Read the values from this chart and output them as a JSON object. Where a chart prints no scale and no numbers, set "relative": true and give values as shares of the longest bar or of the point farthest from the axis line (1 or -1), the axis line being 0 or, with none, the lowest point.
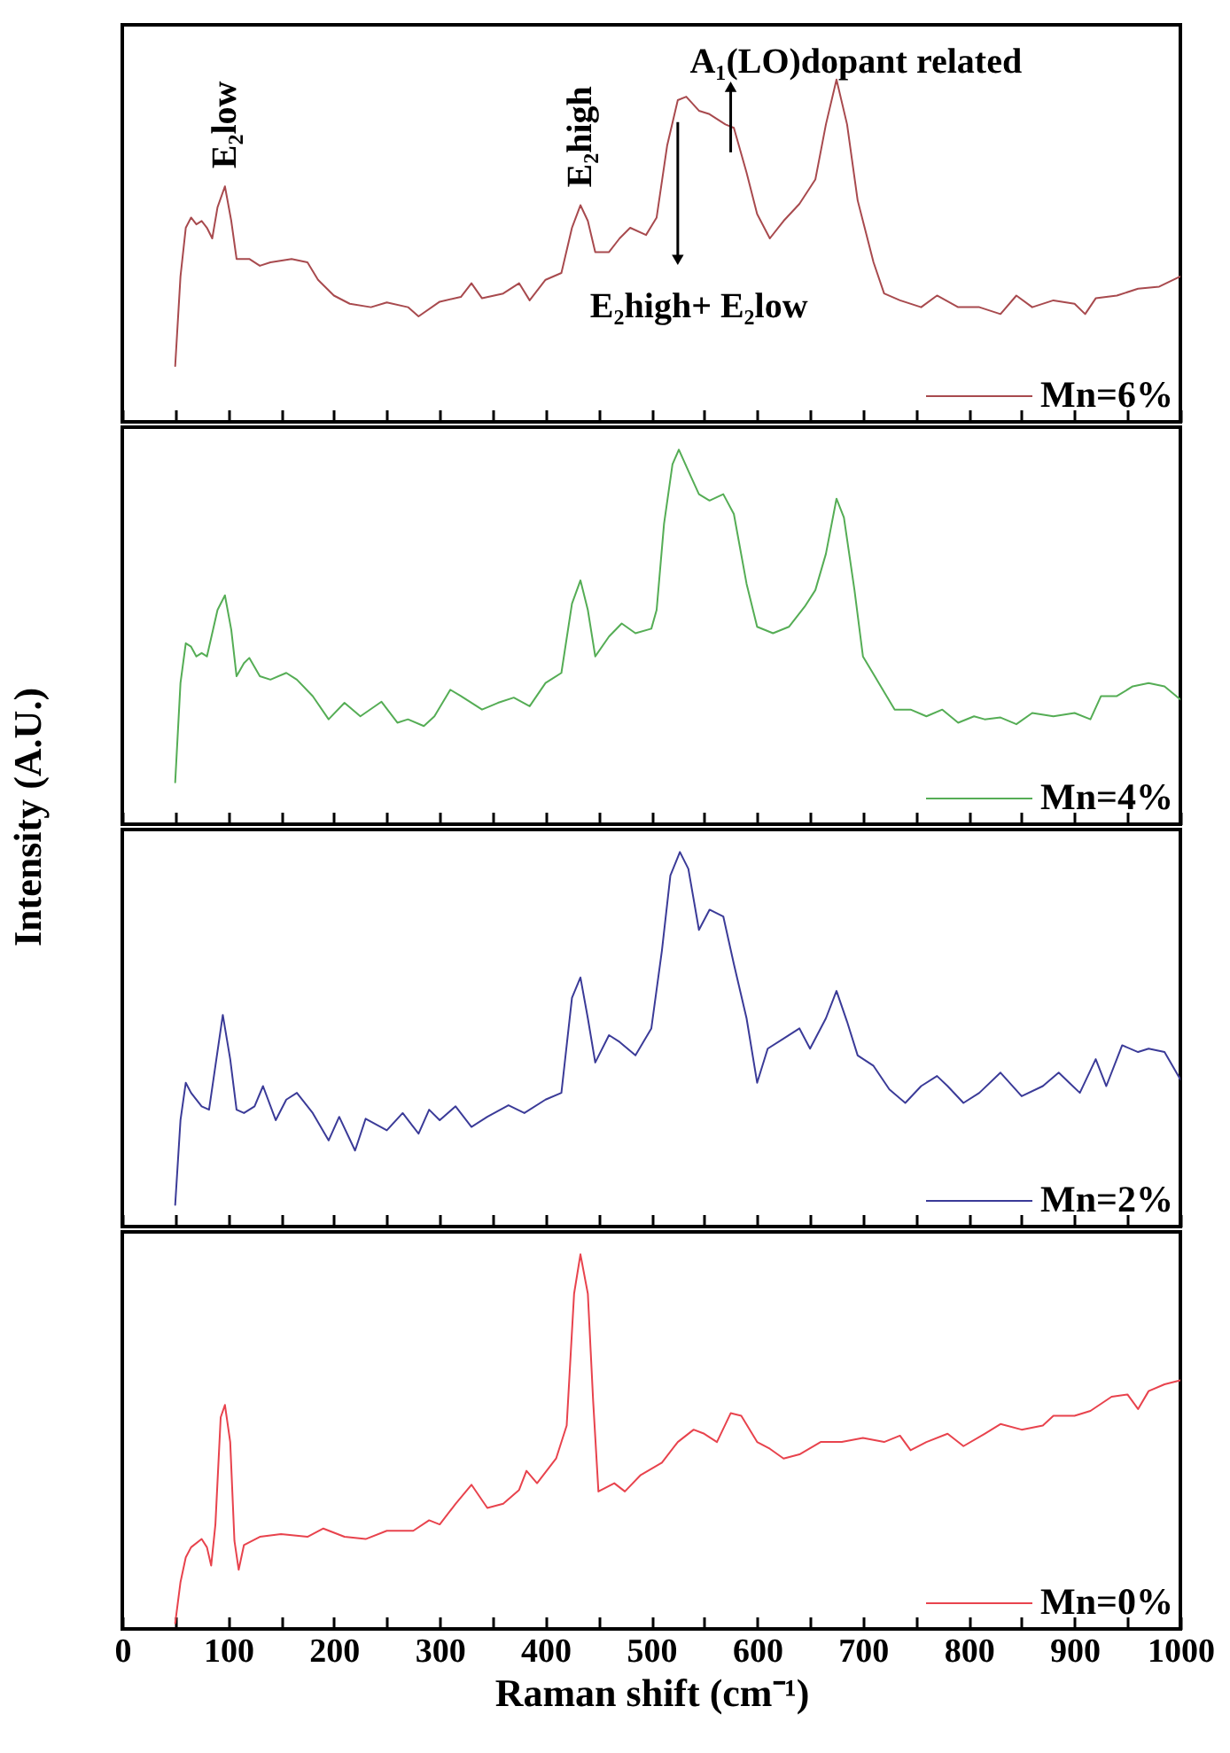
{
  "chart_data": [
    {
      "type": "line",
      "relative": true,
      "legend": "bottom right",
      "tick_labels": false,
      "xlim": [
        0,
        1000
      ],
      "xticks": [
        0,
        {
          "value": 50,
          "label": null
        },
        100,
        {
          "value": 150,
          "label": null
        },
        200,
        {
          "value": 250,
          "label": null
        },
        300,
        {
          "value": 350,
          "label": null
        },
        400,
        {
          "value": 450,
          "label": null
        },
        500,
        {
          "value": 550,
          "label": null
        },
        600,
        {
          "value": 650,
          "label": null
        },
        700,
        {
          "value": 750,
          "label": null
        },
        800,
        {
          "value": 850,
          "label": null
        },
        900,
        {
          "value": 950,
          "label": null
        },
        1000
      ],
      "annotations": [
        {
          "text": "E₂low",
          "x": 97,
          "y": 0.688
        },
        {
          "text": "E₂high",
          "x": 433,
          "y": 0.633
        },
        {
          "text": "A₁(LO)dopant related",
          "x": 575,
          "y": 0.86
        },
        "E₂high+ E₂low"
      ],
      "x": [
        50,
        55,
        60,
        65,
        70,
        75,
        80,
        85,
        90,
        97,
        103,
        108,
        120,
        130,
        140,
        160,
        175,
        185,
        200,
        215,
        235,
        250,
        270,
        280,
        300,
        320,
        330,
        340,
        360,
        375,
        385,
        400,
        415,
        425,
        433,
        440,
        447,
        460,
        470,
        480,
        495,
        505,
        515,
        525,
        533,
        545,
        555,
        570,
        578,
        590,
        600,
        612,
        625,
        640,
        655,
        665,
        675,
        685,
        695,
        710,
        720,
        735,
        755,
        770,
        790,
        810,
        830,
        845,
        860,
        880,
        900,
        910,
        920,
        940,
        960,
        980,
        1000
      ],
      "series": [
        {
          "name": "Mn=6%",
          "color": "#a84a4e",
          "values": [
            0.163,
            0.425,
            0.567,
            0.597,
            0.577,
            0.587,
            0.567,
            0.536,
            0.627,
            0.688,
            0.587,
            0.476,
            0.476,
            0.456,
            0.466,
            0.476,
            0.466,
            0.415,
            0.369,
            0.345,
            0.335,
            0.349,
            0.335,
            0.308,
            0.351,
            0.365,
            0.405,
            0.361,
            0.375,
            0.405,
            0.355,
            0.415,
            0.435,
            0.567,
            0.633,
            0.587,
            0.496,
            0.496,
            0.536,
            0.567,
            0.546,
            0.597,
            0.808,
            0.94,
            0.95,
            0.909,
            0.899,
            0.869,
            0.859,
            0.728,
            0.607,
            0.536,
            0.587,
            0.637,
            0.708,
            0.869,
            1.0,
            0.869,
            0.647,
            0.466,
            0.375,
            0.355,
            0.335,
            0.369,
            0.335,
            0.335,
            0.315,
            0.369,
            0.335,
            0.355,
            0.345,
            0.315,
            0.361,
            0.369,
            0.389,
            0.395,
            0.425
          ]
        }
      ]
    },
    {
      "type": "line",
      "relative": true,
      "legend": "bottom right",
      "tick_labels": false,
      "xlim": [
        0,
        1000
      ],
      "ylabel": "Intensity (A.U.)",
      "xticks": [
        0,
        {
          "value": 50,
          "label": null
        },
        100,
        {
          "value": 150,
          "label": null
        },
        200,
        {
          "value": 250,
          "label": null
        },
        300,
        {
          "value": 350,
          "label": null
        },
        400,
        {
          "value": 450,
          "label": null
        },
        500,
        {
          "value": 550,
          "label": null
        },
        600,
        {
          "value": 650,
          "label": null
        },
        700,
        {
          "value": 750,
          "label": null
        },
        800,
        {
          "value": 850,
          "label": null
        },
        900,
        {
          "value": 950,
          "label": null
        },
        1000
      ],
      "x": [
        50,
        55,
        60,
        65,
        70,
        75,
        80,
        90,
        97,
        103,
        108,
        115,
        120,
        130,
        140,
        155,
        165,
        180,
        195,
        210,
        225,
        245,
        260,
        270,
        285,
        295,
        310,
        320,
        340,
        355,
        370,
        385,
        400,
        415,
        425,
        433,
        440,
        447,
        460,
        472,
        485,
        500,
        505,
        512,
        520,
        526,
        535,
        545,
        555,
        568,
        578,
        590,
        600,
        615,
        630,
        645,
        655,
        665,
        675,
        682,
        692,
        700,
        715,
        730,
        745,
        760,
        775,
        790,
        805,
        815,
        830,
        845,
        860,
        880,
        900,
        915,
        925,
        940,
        955,
        970,
        985,
        1000
      ],
      "series": [
        {
          "name": "Mn=4%",
          "color": "#55ad55",
          "values": [
            0.112,
            0.377,
            0.483,
            0.474,
            0.448,
            0.457,
            0.448,
            0.572,
            0.611,
            0.519,
            0.395,
            0.43,
            0.444,
            0.395,
            0.386,
            0.404,
            0.386,
            0.342,
            0.28,
            0.324,
            0.288,
            0.327,
            0.271,
            0.28,
            0.262,
            0.288,
            0.359,
            0.342,
            0.306,
            0.324,
            0.338,
            0.315,
            0.377,
            0.404,
            0.589,
            0.651,
            0.572,
            0.448,
            0.501,
            0.536,
            0.51,
            0.522,
            0.572,
            0.802,
            0.961,
            1.0,
            0.943,
            0.881,
            0.864,
            0.881,
            0.828,
            0.642,
            0.527,
            0.51,
            0.527,
            0.581,
            0.625,
            0.722,
            0.869,
            0.819,
            0.625,
            0.448,
            0.377,
            0.306,
            0.306,
            0.288,
            0.306,
            0.271,
            0.288,
            0.28,
            0.285,
            0.267,
            0.297,
            0.288,
            0.297,
            0.28,
            0.342,
            0.342,
            0.368,
            0.377,
            0.368,
            0.333
          ]
        }
      ]
    },
    {
      "type": "line",
      "relative": true,
      "legend": "bottom right",
      "tick_labels": false,
      "xlim": [
        0,
        1000
      ],
      "xticks": [
        0,
        {
          "value": 50,
          "label": null
        },
        100,
        {
          "value": 150,
          "label": null
        },
        200,
        {
          "value": 250,
          "label": null
        },
        300,
        {
          "value": 350,
          "label": null
        },
        400,
        {
          "value": 450,
          "label": null
        },
        500,
        {
          "value": 550,
          "label": null
        },
        600,
        {
          "value": 650,
          "label": null
        },
        700,
        {
          "value": 750,
          "label": null
        },
        800,
        {
          "value": 850,
          "label": null
        },
        900,
        {
          "value": 950,
          "label": null
        },
        1000
      ],
      "x": [
        50,
        55,
        60,
        65,
        75,
        82,
        88,
        95,
        102,
        108,
        115,
        125,
        133,
        145,
        155,
        165,
        180,
        195,
        205,
        220,
        230,
        250,
        265,
        280,
        290,
        300,
        315,
        330,
        345,
        365,
        380,
        400,
        415,
        425,
        433,
        440,
        447,
        460,
        470,
        485,
        500,
        510,
        518,
        527,
        535,
        545,
        555,
        568,
        578,
        590,
        600,
        610,
        625,
        640,
        650,
        665,
        675,
        685,
        695,
        710,
        725,
        740,
        755,
        770,
        780,
        795,
        810,
        830,
        850,
        870,
        885,
        895,
        905,
        920,
        930,
        945,
        960,
        970,
        985,
        1000
      ],
      "series": [
        {
          "name": "Mn=2%",
          "color": "#3b3b98",
          "values": [
            0.058,
            0.284,
            0.384,
            0.357,
            0.321,
            0.312,
            0.429,
            0.565,
            0.447,
            0.312,
            0.303,
            0.321,
            0.375,
            0.284,
            0.339,
            0.357,
            0.303,
            0.23,
            0.293,
            0.203,
            0.288,
            0.257,
            0.303,
            0.248,
            0.312,
            0.284,
            0.321,
            0.266,
            0.293,
            0.324,
            0.303,
            0.339,
            0.357,
            0.611,
            0.665,
            0.556,
            0.438,
            0.511,
            0.493,
            0.457,
            0.529,
            0.737,
            0.937,
            1.0,
            0.955,
            0.792,
            0.846,
            0.828,
            0.701,
            0.556,
            0.384,
            0.475,
            0.502,
            0.529,
            0.475,
            0.556,
            0.629,
            0.547,
            0.457,
            0.429,
            0.366,
            0.33,
            0.375,
            0.402,
            0.375,
            0.33,
            0.357,
            0.411,
            0.348,
            0.375,
            0.411,
            0.384,
            0.357,
            0.447,
            0.375,
            0.484,
            0.466,
            0.475,
            0.466,
            0.393
          ]
        }
      ]
    },
    {
      "type": "line",
      "relative": true,
      "legend": "bottom right",
      "tick_labels": "x",
      "xlim": [
        0,
        1000
      ],
      "xlabel": "Raman shift (cm⁻¹)",
      "xticks": [
        0,
        {
          "value": 50,
          "label": null
        },
        100,
        {
          "value": 150,
          "label": null
        },
        200,
        {
          "value": 250,
          "label": null
        },
        300,
        {
          "value": 350,
          "label": null
        },
        400,
        {
          "value": 450,
          "label": null
        },
        500,
        {
          "value": 550,
          "label": null
        },
        600,
        {
          "value": 650,
          "label": null
        },
        700,
        {
          "value": 750,
          "label": null
        },
        800,
        {
          "value": 850,
          "label": null
        },
        900,
        {
          "value": 950,
          "label": null
        },
        1000
      ],
      "x": [
        50,
        55,
        60,
        65,
        75,
        80,
        84,
        88,
        93,
        97,
        102,
        106,
        110,
        115,
        130,
        150,
        175,
        190,
        210,
        230,
        250,
        275,
        290,
        300,
        315,
        330,
        345,
        360,
        375,
        382,
        392,
        410,
        420,
        427,
        433,
        440,
        445,
        450,
        465,
        475,
        490,
        510,
        525,
        540,
        550,
        562,
        575,
        585,
        600,
        612,
        625,
        640,
        660,
        680,
        700,
        720,
        735,
        745,
        760,
        780,
        795,
        815,
        830,
        850,
        870,
        880,
        900,
        915,
        935,
        950,
        960,
        970,
        985,
        1000
      ],
      "series": [
        {
          "name": "Mn=0%",
          "color": "#e8434d",
          "values": [
            0.015,
            0.125,
            0.191,
            0.218,
            0.24,
            0.218,
            0.169,
            0.279,
            0.565,
            0.598,
            0.499,
            0.235,
            0.158,
            0.224,
            0.246,
            0.253,
            0.246,
            0.268,
            0.246,
            0.24,
            0.262,
            0.262,
            0.29,
            0.279,
            0.334,
            0.385,
            0.323,
            0.334,
            0.371,
            0.422,
            0.389,
            0.455,
            0.543,
            0.895,
            1.0,
            0.895,
            0.609,
            0.367,
            0.389,
            0.367,
            0.411,
            0.444,
            0.499,
            0.532,
            0.521,
            0.499,
            0.576,
            0.569,
            0.499,
            0.481,
            0.455,
            0.466,
            0.499,
            0.499,
            0.51,
            0.499,
            0.516,
            0.477,
            0.499,
            0.521,
            0.488,
            0.521,
            0.547,
            0.532,
            0.543,
            0.569,
            0.569,
            0.582,
            0.62,
            0.626,
            0.587,
            0.635,
            0.653,
            0.664
          ]
        }
      ]
    }
  ]
}
